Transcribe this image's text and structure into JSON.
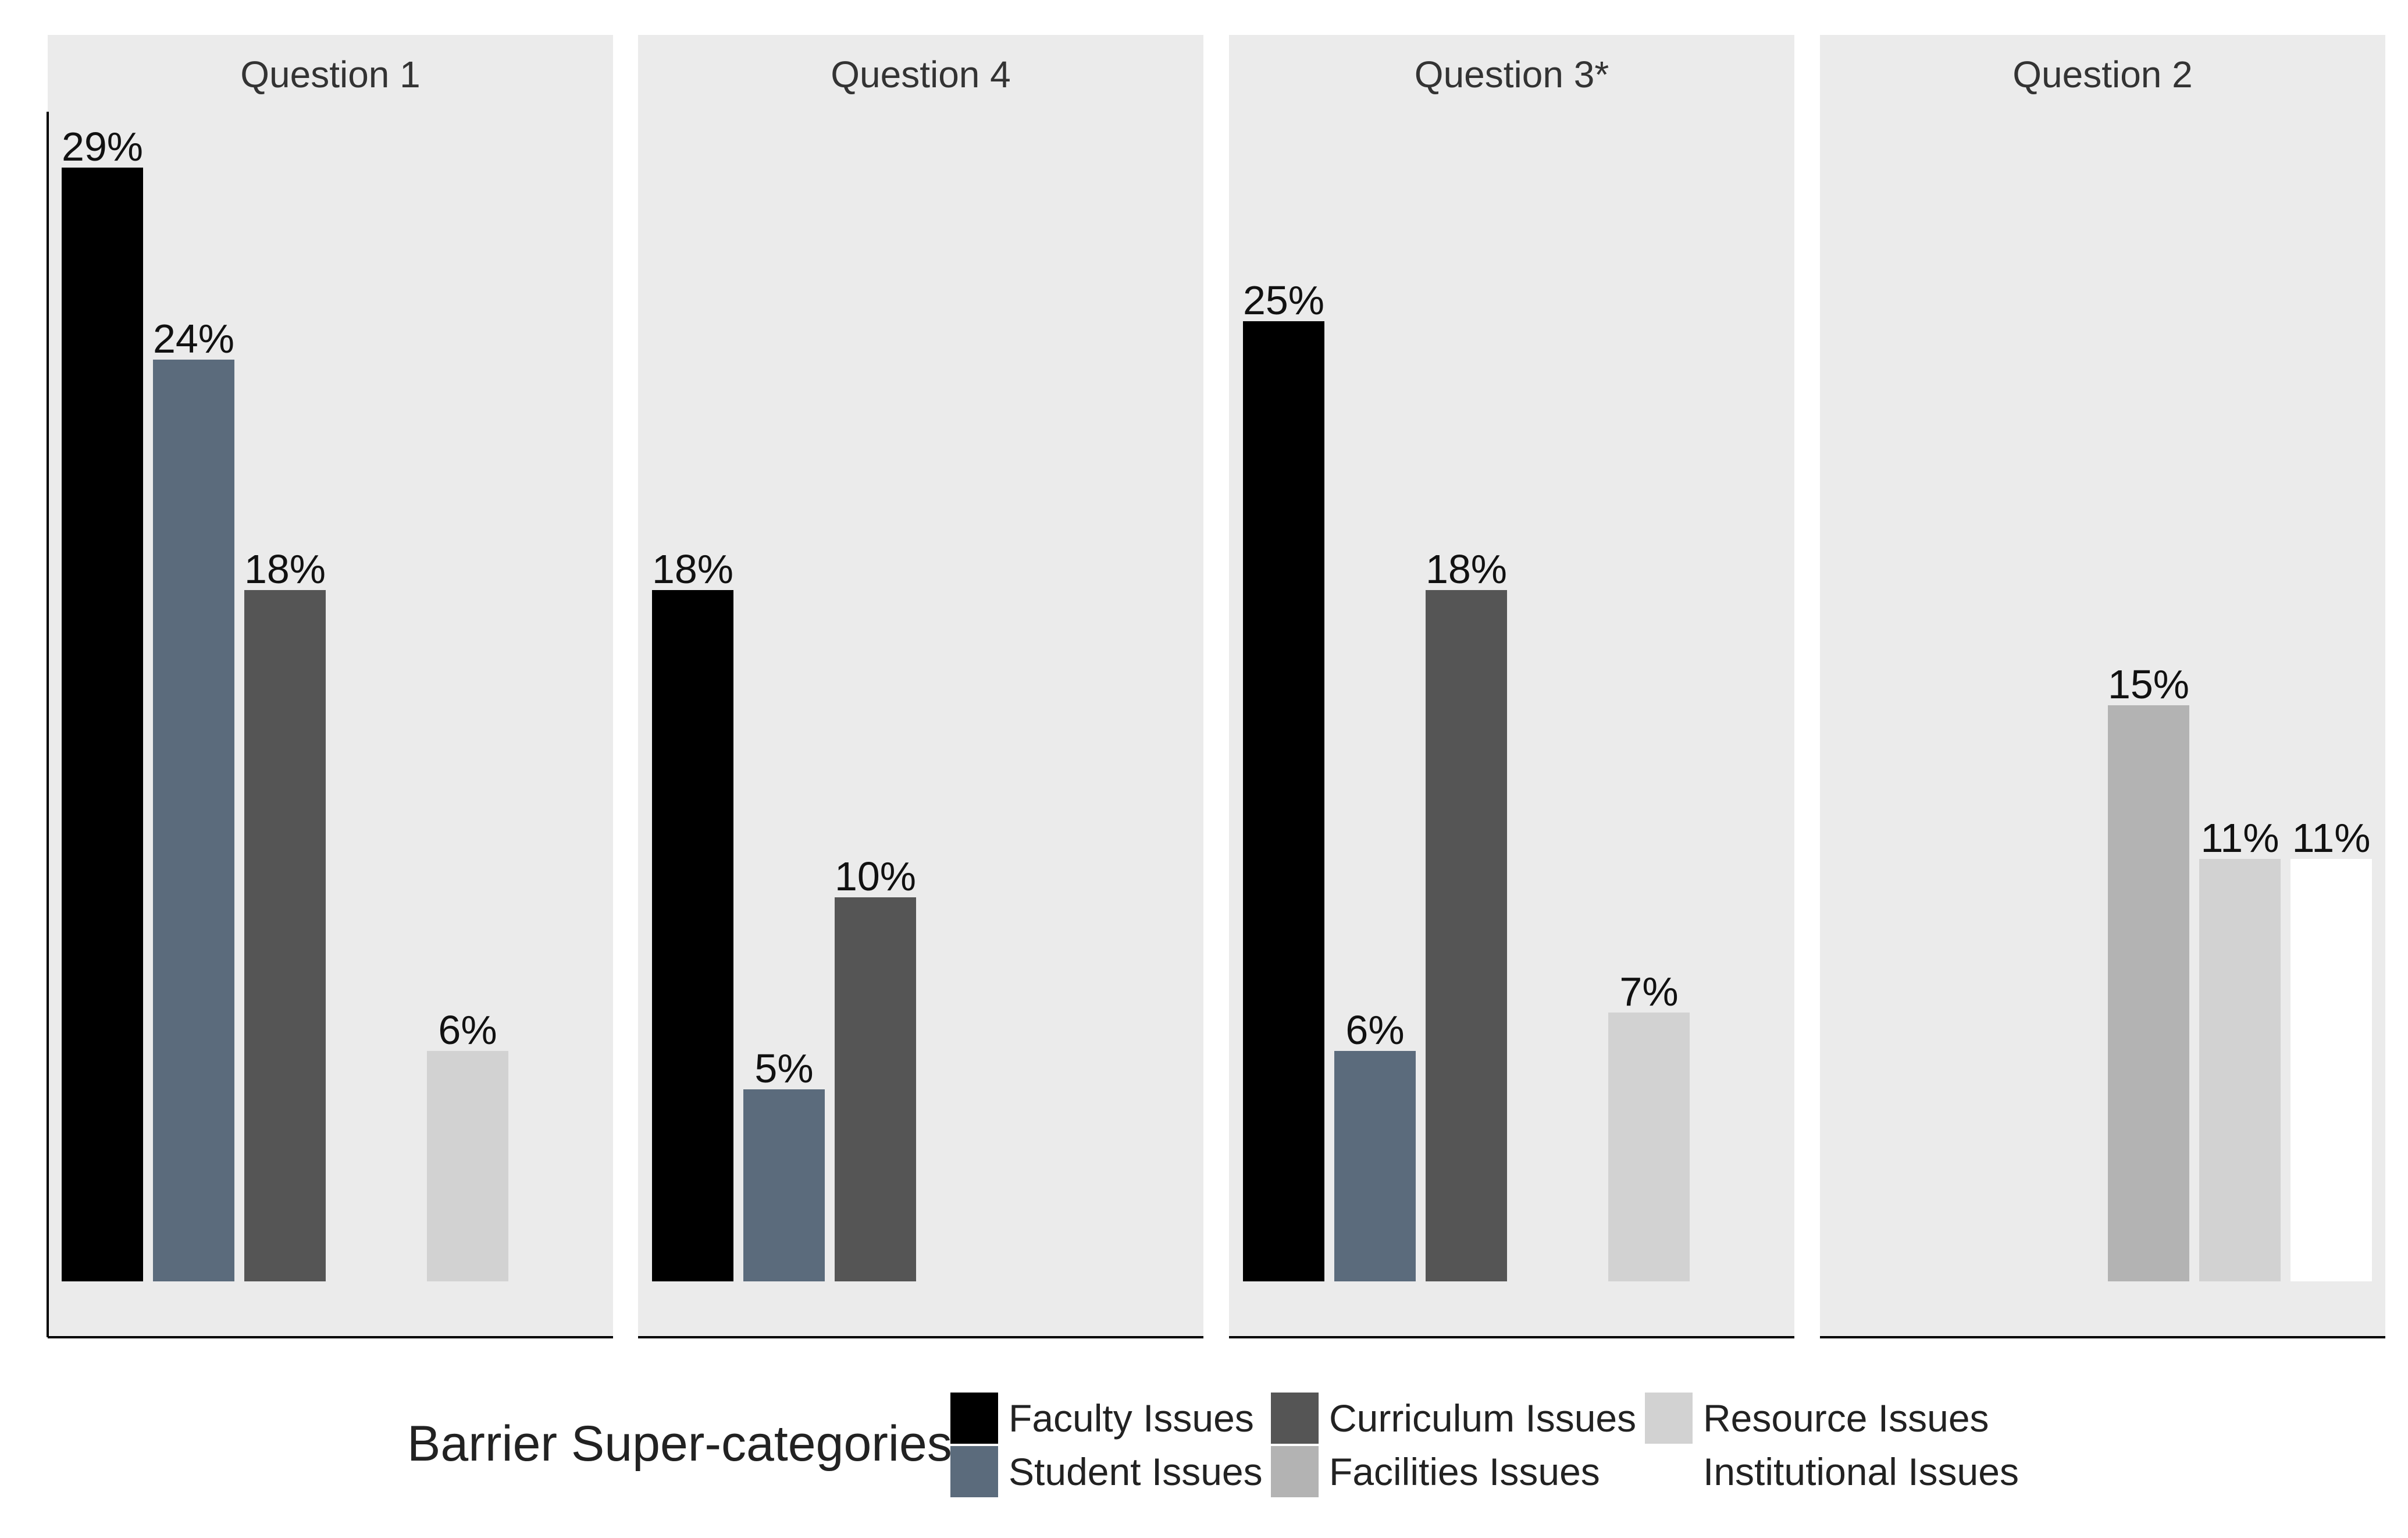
{
  "chart_data": {
    "type": "bar",
    "facets": [
      {
        "title": "Question 1",
        "values": {
          "Faculty Issues": 29,
          "Student Issues": 24,
          "Curriculum Issues": 18,
          "Resource Issues": 6
        },
        "labels": {
          "Faculty Issues": "29%",
          "Student Issues": "24%",
          "Curriculum Issues": "18%",
          "Resource Issues": "6%"
        }
      },
      {
        "title": "Question 4",
        "values": {
          "Faculty Issues": 18,
          "Student Issues": 5,
          "Curriculum Issues": 10
        },
        "labels": {
          "Faculty Issues": "18%",
          "Student Issues": "5%",
          "Curriculum Issues": "10%"
        }
      },
      {
        "title": "Question 3*",
        "values": {
          "Faculty Issues": 25,
          "Student Issues": 6,
          "Curriculum Issues": 18,
          "Resource Issues": 7
        },
        "labels": {
          "Faculty Issues": "25%",
          "Student Issues": "6%",
          "Curriculum Issues": "18%",
          "Resource Issues": "7%"
        }
      },
      {
        "title": "Question 2",
        "values": {
          "Facilities Issues": 15,
          "Resource Issues": 11,
          "Institutional Issues": 11
        },
        "labels": {
          "Facilities Issues": "15%",
          "Resource Issues": "11%",
          "Institutional Issues": "11%"
        }
      }
    ],
    "categories": [
      "Faculty Issues",
      "Student Issues",
      "Curriculum Issues",
      "Facilities Issues",
      "Resource Issues",
      "Institutional Issues"
    ],
    "colors": {
      "Faculty Issues": "#000000",
      "Student Issues": "#5b6b7c",
      "Curriculum Issues": "#555555",
      "Facilities Issues": "#b3b3b3",
      "Resource Issues": "#d2d2d2",
      "Institutional Issues": "#ffffff"
    },
    "ylim": [
      0,
      30.5
    ],
    "grid": false,
    "legend": {
      "title": "Barrier Super-categories",
      "position": "bottom",
      "entries": [
        "Faculty Issues",
        "Student Issues",
        "Curriculum Issues",
        "Facilities Issues",
        "Resource Issues",
        "Institutional Issues"
      ]
    },
    "panel_background": "#ebebeb"
  }
}
